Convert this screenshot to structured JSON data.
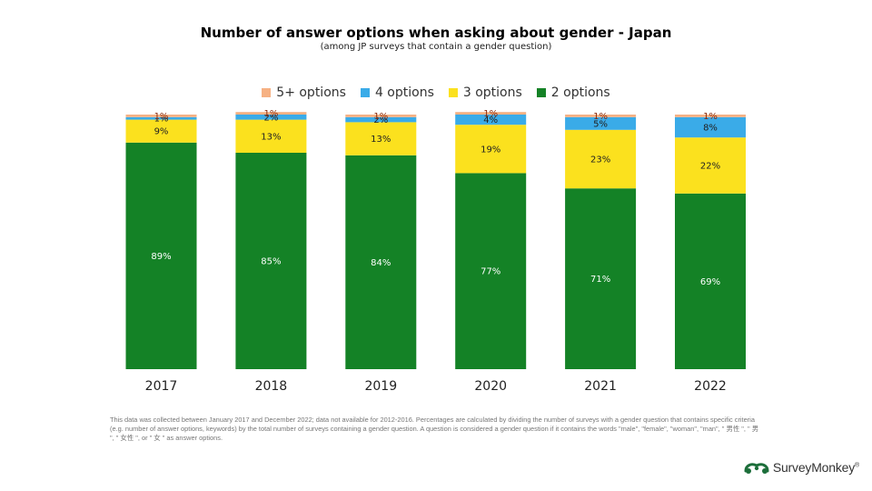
{
  "title": "Number of answer options when asking about gender - Japan",
  "subtitle": "(among JP surveys that contain a gender question)",
  "footnote": "This data was collected between January 2017 and December 2022; data not available for 2012-2016. Percentages are calculated by dividing the number of surveys with a gender question that contains specific criteria (e.g. number of answer options, keywords) by the total number of surveys containing a gender question. A question is considered a gender question if it contains the words \"male\", \"female\", \"woman\", \"man\", \" 男性 \", \" 男 \", \" 女性 \", or \" 女 \" as answer options.",
  "brand": {
    "name": "SurveyMonkey",
    "trademark": "®",
    "logo_icon": "surveymonkey-logo-icon",
    "color": "#00bf6f"
  },
  "legend": [
    {
      "label": "5+ options",
      "color": "#f6b183"
    },
    {
      "label": "4 options",
      "color": "#3aabe8"
    },
    {
      "label": "3 options",
      "color": "#fbe11e"
    },
    {
      "label": "2 options",
      "color": "#148226"
    }
  ],
  "chart_data": {
    "type": "bar",
    "stacked": true,
    "categories": [
      "2017",
      "2018",
      "2019",
      "2020",
      "2021",
      "2022"
    ],
    "series": [
      {
        "name": "2 options",
        "color": "#148226",
        "values": [
          89,
          85,
          84,
          77,
          71,
          69
        ],
        "labels": [
          "89%",
          "85%",
          "84%",
          "77%",
          "71%",
          "69%"
        ]
      },
      {
        "name": "3 options",
        "color": "#fbe11e",
        "values": [
          9,
          13,
          13,
          19,
          23,
          22
        ],
        "labels": [
          "9%",
          "13%",
          "13%",
          "19%",
          "23%",
          "22%"
        ]
      },
      {
        "name": "4 options",
        "color": "#3aabe8",
        "values": [
          1,
          2,
          2,
          4,
          5,
          8
        ],
        "labels": [
          "1%",
          "2%",
          "2%",
          "4%",
          "5%",
          "8%"
        ]
      },
      {
        "name": "5+ options",
        "color": "#f6b183",
        "values": [
          1,
          1,
          1,
          1,
          1,
          1
        ],
        "labels": [
          "1%",
          "1%",
          "1%",
          "1%",
          "1%",
          "1%"
        ]
      }
    ],
    "ylim": [
      0,
      100
    ],
    "grid": false,
    "legend_position": "top"
  }
}
